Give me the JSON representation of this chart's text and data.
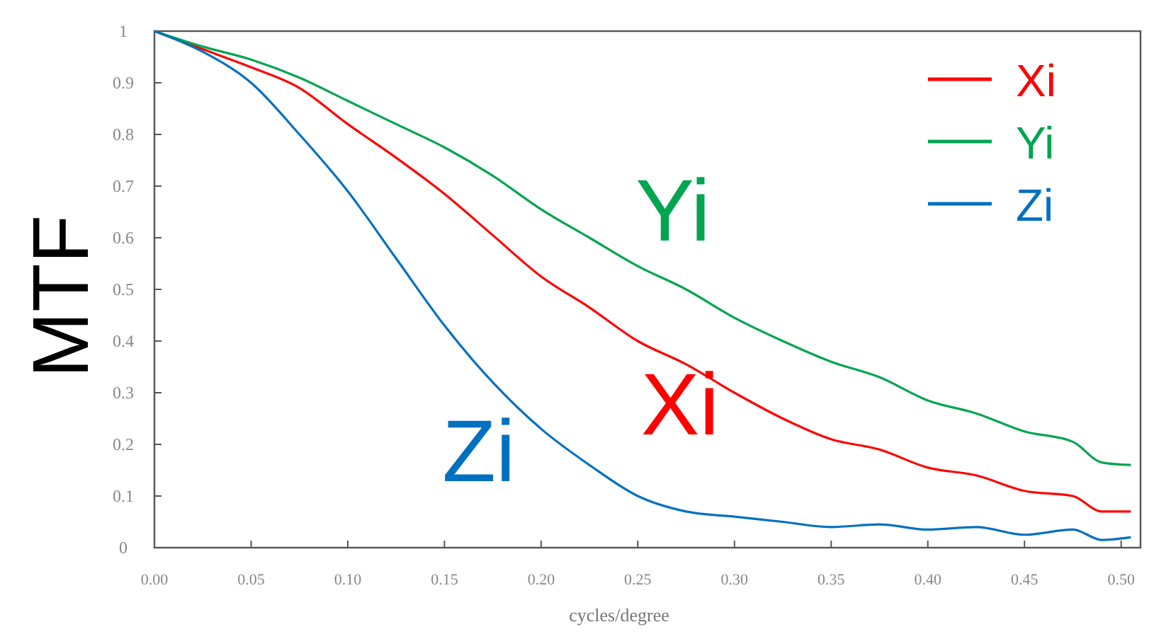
{
  "chart_data": {
    "type": "line",
    "xlabel": "cycles/degree",
    "ylabel": "MTF",
    "x": [
      0,
      0.025,
      0.05,
      0.075,
      0.1,
      0.125,
      0.15,
      0.175,
      0.2,
      0.225,
      0.25,
      0.275,
      0.3,
      0.325,
      0.35,
      0.375,
      0.4,
      0.425,
      0.45,
      0.475,
      0.49,
      0.505
    ],
    "series": [
      {
        "name": "Xi",
        "color": "#ff0000",
        "values": [
          1,
          0.965,
          0.93,
          0.89,
          0.82,
          0.755,
          0.685,
          0.605,
          0.525,
          0.465,
          0.4,
          0.355,
          0.3,
          0.25,
          0.21,
          0.19,
          0.155,
          0.14,
          0.11,
          0.1,
          0.07,
          0.07
        ]
      },
      {
        "name": "Yi",
        "color": "#00a550",
        "values": [
          1,
          0.97,
          0.945,
          0.91,
          0.865,
          0.82,
          0.775,
          0.72,
          0.655,
          0.6,
          0.545,
          0.5,
          0.445,
          0.4,
          0.36,
          0.33,
          0.285,
          0.26,
          0.225,
          0.205,
          0.165,
          0.16
        ]
      },
      {
        "name": "Zi",
        "color": "#0070c0",
        "values": [
          1,
          0.96,
          0.9,
          0.8,
          0.69,
          0.56,
          0.43,
          0.32,
          0.23,
          0.16,
          0.1,
          0.07,
          0.06,
          0.05,
          0.04,
          0.045,
          0.035,
          0.04,
          0.025,
          0.035,
          0.015,
          0.02
        ]
      }
    ],
    "annotations": [
      "Xi",
      "Yi",
      "Zi"
    ],
    "xlim": [
      0,
      0.51
    ],
    "ylim": [
      0,
      1
    ],
    "xticks": [
      {
        "value": 0,
        "label": "0.00"
      },
      {
        "value": 0.05,
        "label": "0.05"
      },
      {
        "value": 0.1,
        "label": "0.10"
      },
      {
        "value": 0.15,
        "label": "0.15"
      },
      {
        "value": 0.2,
        "label": "0.20"
      },
      {
        "value": 0.25,
        "label": "0.25"
      },
      {
        "value": 0.3,
        "label": "0.30"
      },
      {
        "value": 0.35,
        "label": "0.35"
      },
      {
        "value": 0.4,
        "label": "0.40"
      },
      {
        "value": 0.45,
        "label": "0.45"
      },
      {
        "value": 0.5,
        "label": "0.50"
      }
    ],
    "yticks": [
      0,
      0.1,
      0.2,
      0.3,
      0.4,
      0.5,
      0.6,
      0.7,
      0.8,
      0.9,
      1
    ],
    "legend": "top right",
    "grid": false,
    "line_style": "solid"
  }
}
